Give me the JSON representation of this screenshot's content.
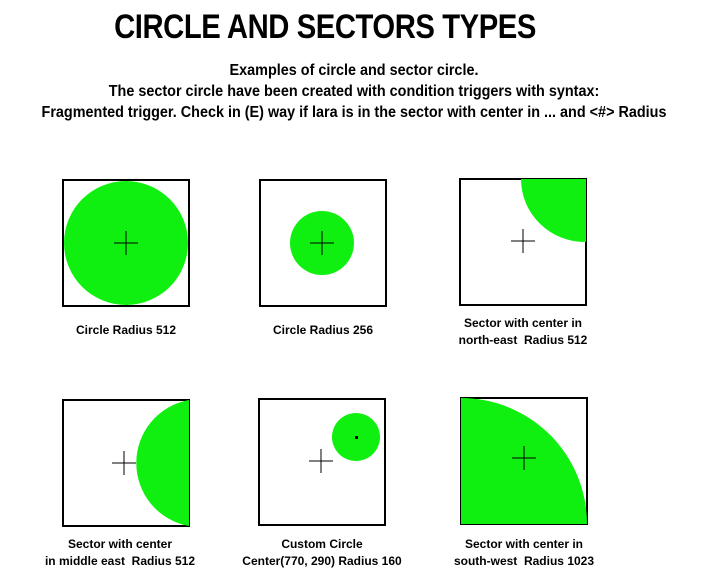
{
  "page": {
    "title": "CIRCLE AND SECTORS TYPES",
    "subtitle_line1": "Examples of circle and sector circle.",
    "subtitle_line2": "The sector circle have been created with condition triggers with syntax:",
    "subtitle_line3": "Fragmented trigger. Check in (E) way if lara is in the sector with center in ... and <#> Radius"
  },
  "colors": {
    "fill": "#10f010",
    "frame": "#000000",
    "background": "#ffffff"
  },
  "panels": [
    {
      "caption": "Circle Radius 512"
    },
    {
      "caption": "Circle Radius 256"
    },
    {
      "caption": "Sector with center in\nnorth-east  Radius 512"
    },
    {
      "caption": "Sector with center\nin middle east  Radius 512"
    },
    {
      "caption": "Custom Circle\nCenter(770, 290) Radius 160"
    },
    {
      "caption": "Sector with center in\nsouth-west  Radius 1023"
    }
  ]
}
